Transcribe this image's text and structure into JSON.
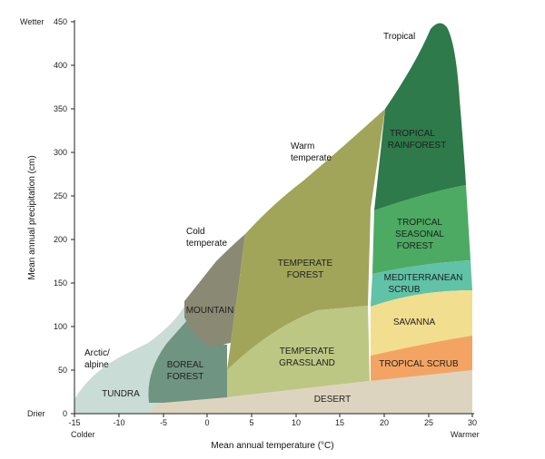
{
  "x_axis": {
    "label": "Mean annual temperature (°C)",
    "ticks": [
      "-15",
      "-10",
      "-5",
      "0",
      "5",
      "10",
      "15",
      "20",
      "25",
      "30"
    ],
    "low_label": "Colder",
    "high_label": "Warmer"
  },
  "y_axis": {
    "label": "Mean annual precipitation (cm)",
    "ticks": [
      "0",
      "50",
      "100",
      "150",
      "200",
      "250",
      "300",
      "350",
      "400",
      "450"
    ],
    "low_label": "Drier",
    "high_label": "Wetter"
  },
  "annotations": {
    "tropical": "Tropical",
    "warm_temperate_1": "Warm",
    "warm_temperate_2": "temperate",
    "cold_temperate_1": "Cold",
    "cold_temperate_2": "temperate",
    "arctic_1": "Arctic/",
    "arctic_2": "alpine"
  },
  "biomes": {
    "tundra": "TUNDRA",
    "boreal_1": "BOREAL",
    "boreal_2": "FOREST",
    "mountain": "MOUNTAIN",
    "temperate_forest_1": "TEMPERATE",
    "temperate_forest_2": "FOREST",
    "temperate_grassland_1": "TEMPERATE",
    "temperate_grassland_2": "GRASSLAND",
    "desert": "DESERT",
    "tropical_rainforest_1": "TROPICAL",
    "tropical_rainforest_2": "RAINFOREST",
    "tropical_seasonal_1": "TROPICAL",
    "tropical_seasonal_2": "SEASONAL",
    "tropical_seasonal_3": "FOREST",
    "mediterranean_1": "MEDITERRANEAN",
    "mediterranean_2": "SCRUB",
    "savanna": "SAVANNA",
    "tropical_scrub": "TROPICAL SCRUB"
  },
  "colors": {
    "tundra": "#c9dcd5",
    "boreal": "#6f9481",
    "mountain": "#8a8a74",
    "temperate_forest": "#a1a55a",
    "temperate_grassland": "#bdc784",
    "desert": "#ddd4c0",
    "tropical_rainforest": "#2e7a4a",
    "tropical_seasonal": "#4caa63",
    "mediterranean": "#60c2a7",
    "savanna": "#f2de8f",
    "tropical_scrub": "#f3a463"
  }
}
